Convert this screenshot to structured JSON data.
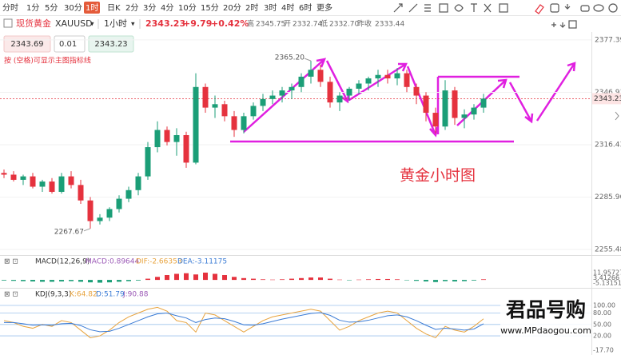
{
  "toolbar": {
    "periods": [
      "分时",
      "1分",
      "5分",
      "30分",
      "1时",
      "日K",
      "2分",
      "3分",
      "4分",
      "10分",
      "15分",
      "20分",
      "2时",
      "3时",
      "4时",
      "6时",
      "更多"
    ],
    "selected": 4
  },
  "quote": {
    "name": "现货黄金",
    "symbol": "XAUUSD",
    "period": "1小时",
    "price": "2343.23",
    "change": "+9.79",
    "change_pct": "+0.42%",
    "high_label": "高",
    "high": "2345.75",
    "open_label": "开",
    "open": "2332.74",
    "low_label": "低",
    "low": "2332.70",
    "prev_label": "昨收",
    "prev": "2333.44"
  },
  "order": {
    "sell": "2343.69",
    "lot": "0.01",
    "buy": "2343.23",
    "hint": "按 (空格)可显示主图指标线"
  },
  "chart_data": {
    "type": "candlestick",
    "caption": "黄金小时图",
    "open": [
      2300,
      2299,
      2296,
      2298,
      2292,
      2295,
      2289,
      2298,
      2293,
      2284,
      2272,
      2274,
      2279,
      2285,
      2290,
      2298,
      2315,
      2325,
      2318,
      2322,
      2306,
      2350,
      2338,
      2340,
      2333,
      2325,
      2333,
      2339,
      2343,
      2345,
      2348,
      2350,
      2356,
      2360,
      2353,
      2341,
      2345,
      2349,
      2352,
      2355,
      2357,
      2355,
      2358,
      2350,
      2345,
      2335,
      2327,
      2348,
      2332,
      2334,
      2338
    ],
    "high": [
      2302,
      2301,
      2299,
      2300,
      2296,
      2297,
      2300,
      2301,
      2296,
      2286,
      2276,
      2280,
      2287,
      2292,
      2300,
      2318,
      2330,
      2327,
      2326,
      2324,
      2358,
      2352,
      2345,
      2342,
      2336,
      2335,
      2341,
      2346,
      2348,
      2350,
      2352,
      2358,
      2365.2,
      2363,
      2356,
      2347,
      2350,
      2354,
      2356,
      2360,
      2360,
      2361,
      2360,
      2352,
      2347,
      2338,
      2354,
      2350,
      2337,
      2340,
      2346
    ],
    "low": [
      2297,
      2295,
      2293,
      2291,
      2289,
      2288,
      2288,
      2291,
      2282,
      2267.67,
      2270,
      2272,
      2277,
      2283,
      2287,
      2296,
      2312,
      2316,
      2310,
      2303,
      2305,
      2335,
      2332,
      2330,
      2321,
      2323,
      2331,
      2336,
      2340,
      2341,
      2343,
      2347,
      2352,
      2350,
      2338,
      2336,
      2342,
      2346,
      2348,
      2350,
      2352,
      2351,
      2347,
      2340,
      2330,
      2323,
      2325,
      2328,
      2326,
      2331,
      2335
    ],
    "close": [
      2299,
      2296,
      2298,
      2292,
      2295,
      2289,
      2298,
      2293,
      2284,
      2272,
      2274,
      2279,
      2285,
      2290,
      2298,
      2315,
      2325,
      2318,
      2322,
      2306,
      2350,
      2338,
      2340,
      2333,
      2325,
      2333,
      2339,
      2343,
      2345,
      2348,
      2350,
      2356,
      2360,
      2353,
      2341,
      2345,
      2349,
      2352,
      2355,
      2357,
      2355,
      2358,
      2350,
      2345,
      2335,
      2327,
      2348,
      2332,
      2334,
      2338,
      2343.23
    ],
    "up_color": "#1b9e77",
    "down_color": "#e5323e",
    "ylim": [
      2252.7,
      2382.0
    ],
    "yticks": [
      2255.48,
      2285.96,
      2316.43,
      2346.91,
      2377.39
    ],
    "annotations": [
      {
        "value": 2365.2,
        "label": "2365.20"
      },
      {
        "value": 2267.67,
        "label": "2267.67"
      }
    ],
    "last": {
      "value": 2343.23,
      "label": "2343.23"
    }
  },
  "macd": {
    "title": "MACD(12,26,9)",
    "macd": "MACD:0.89644",
    "dif": "DIF:-2.66353",
    "dea": "DEA:-3.11175",
    "values": [
      -1,
      -1.5,
      -2,
      -2.5,
      -3,
      -3,
      -2.5,
      -2,
      -3,
      -4,
      -4.5,
      -4,
      -3,
      -2,
      -1,
      2,
      5,
      8,
      10,
      11,
      9,
      12,
      10,
      8,
      5,
      3,
      2,
      1,
      0.5,
      1,
      2,
      3,
      4,
      4,
      2,
      0.5,
      -0.5,
      0.5,
      1,
      1.5,
      1.5,
      1,
      -0.5,
      -1.5,
      -2.5,
      -3.5,
      -2,
      -2.5,
      -2,
      -1,
      1
    ],
    "ylim": [
      -5.13151,
      11.95727
    ],
    "yticks": [
      -5.13151,
      3.41266,
      11.95727
    ]
  },
  "kdj": {
    "title": "KDJ(9,3,3)",
    "k_label": "K:64.82",
    "d_label": "D:51.79",
    "j_label": "J:90.88",
    "k": [
      60,
      55,
      45,
      40,
      50,
      45,
      60,
      55,
      35,
      15,
      20,
      35,
      55,
      70,
      80,
      90,
      95,
      85,
      60,
      55,
      30,
      80,
      75,
      60,
      45,
      30,
      45,
      60,
      70,
      75,
      80,
      85,
      90,
      85,
      60,
      35,
      45,
      60,
      70,
      80,
      85,
      80,
      60,
      40,
      25,
      15,
      45,
      35,
      30,
      45,
      64.82
    ],
    "d": [
      55,
      55,
      52,
      48,
      49,
      48,
      52,
      53,
      47,
      36,
      31,
      32,
      40,
      50,
      60,
      70,
      78,
      80,
      73,
      67,
      55,
      63,
      67,
      65,
      58,
      49,
      48,
      52,
      58,
      64,
      69,
      74,
      79,
      81,
      74,
      61,
      56,
      57,
      61,
      67,
      73,
      75,
      70,
      60,
      48,
      37,
      40,
      38,
      35,
      38,
      51.79
    ],
    "ylim": [
      -17.7,
      100
    ],
    "yticks": [
      {
        "value": -17.7,
        "label": "-17.70"
      },
      {
        "value": 20,
        "label": "20.00"
      },
      {
        "value": 50,
        "label": "50.00"
      },
      {
        "value": 80,
        "label": "80.00"
      },
      {
        "value": 100,
        "label": "100.00"
      }
    ]
  },
  "watermark": {
    "brand": "君品号购",
    "url": "www.MPdaogou.com"
  }
}
